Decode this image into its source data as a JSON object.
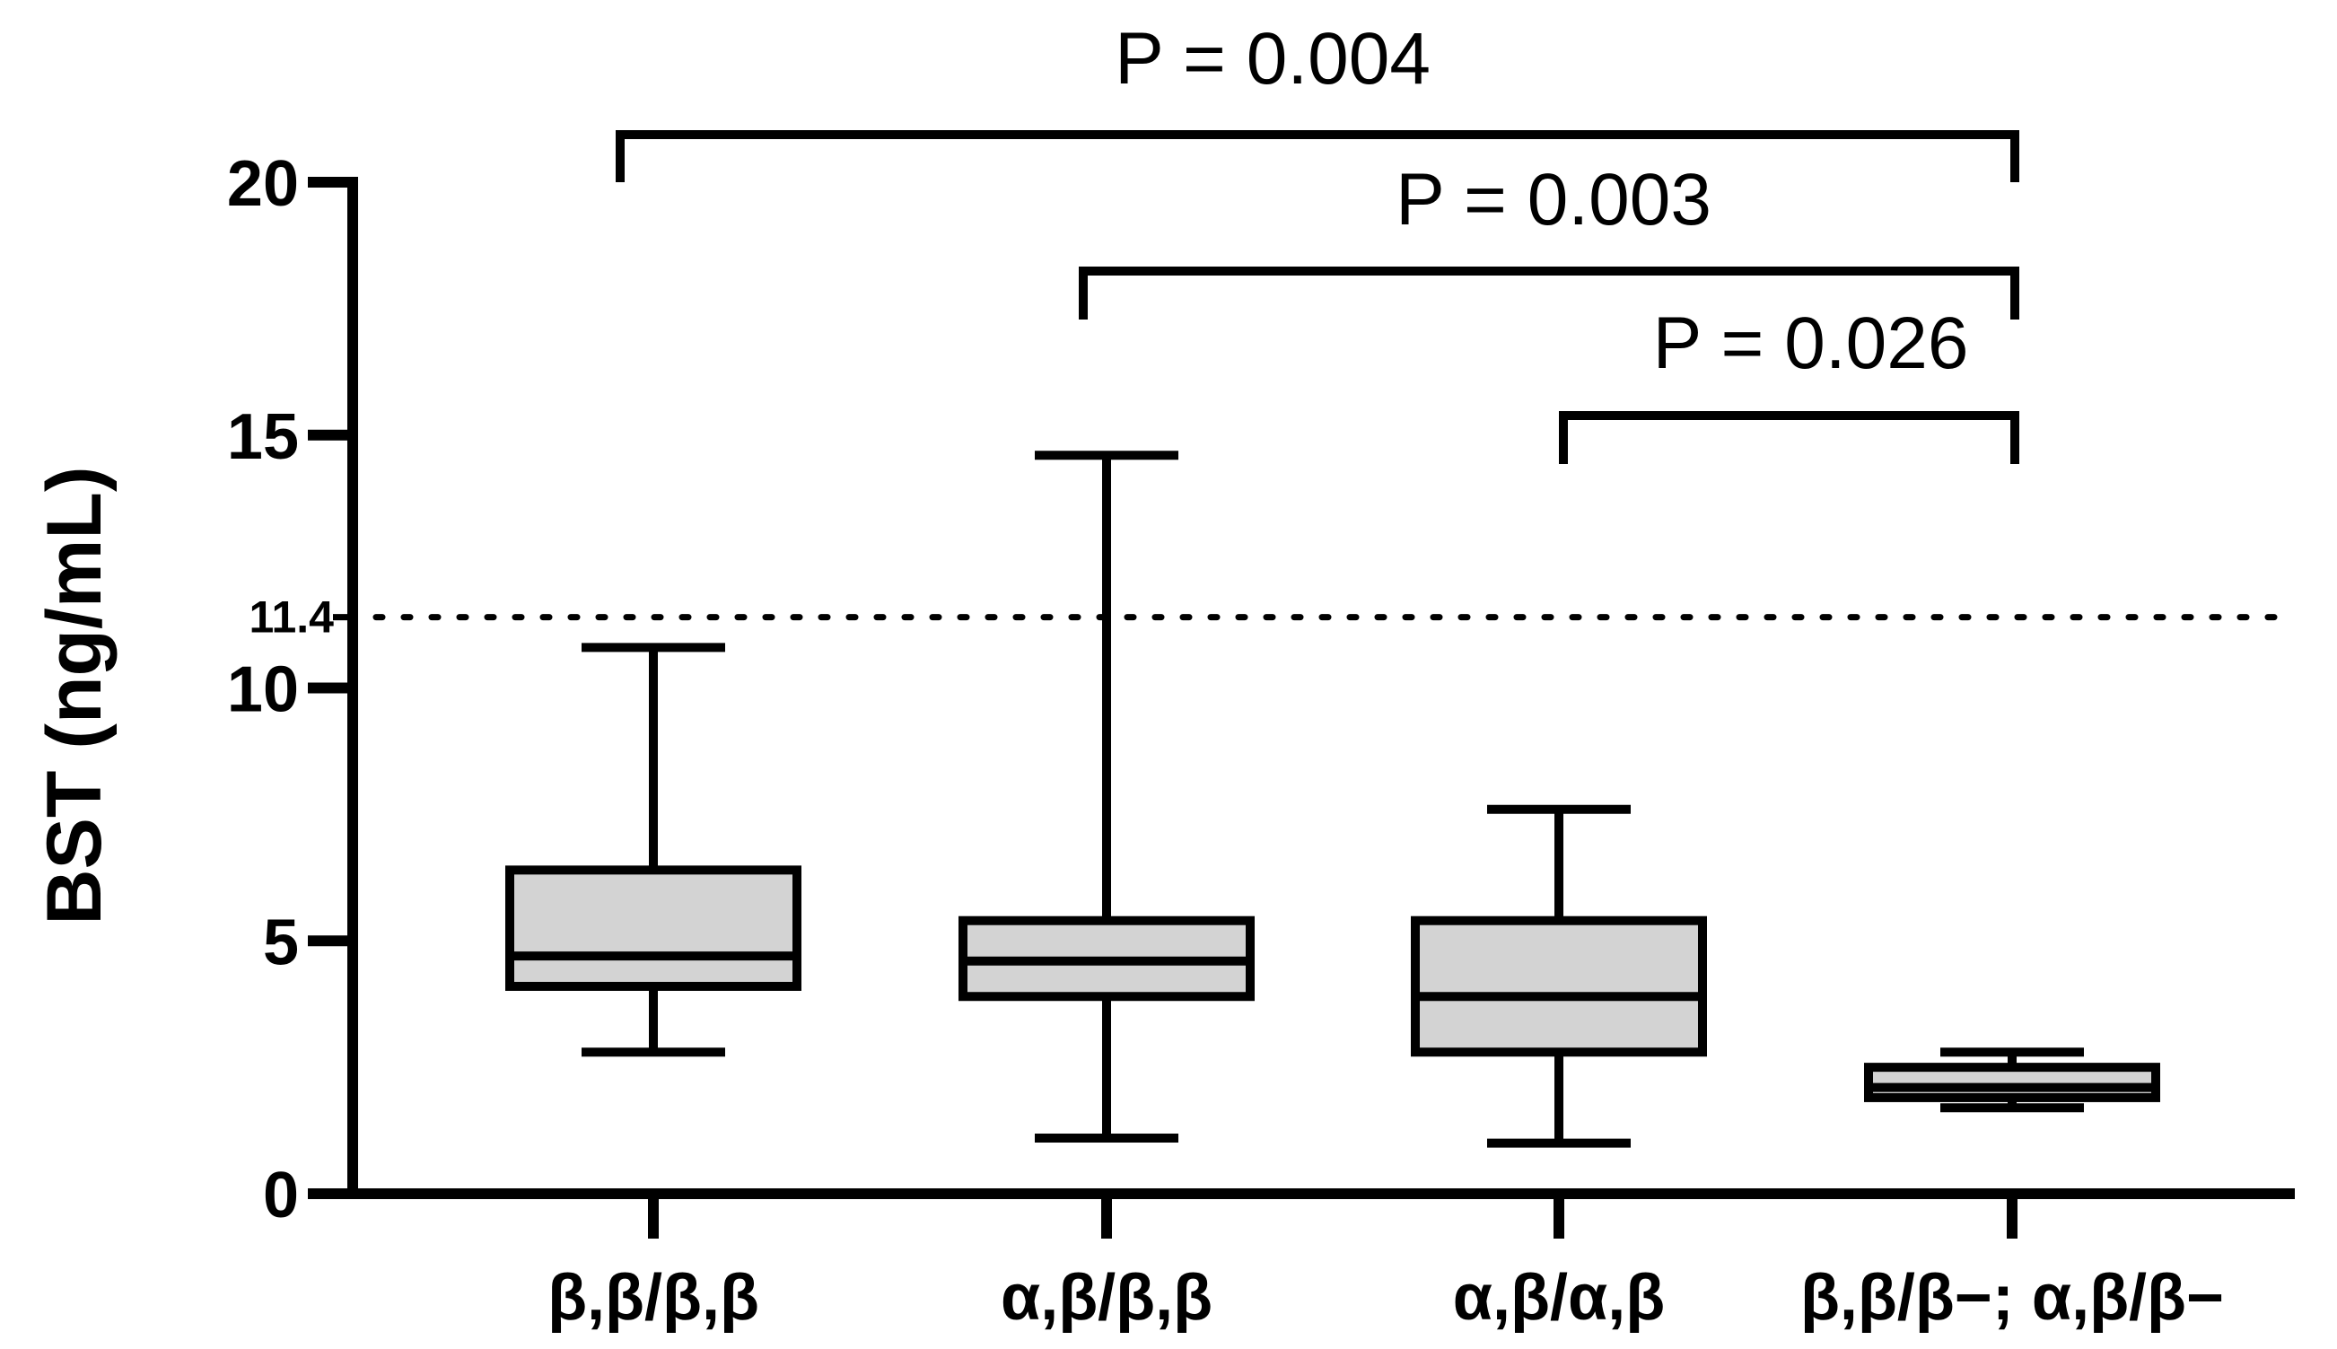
{
  "chart_data": {
    "type": "box",
    "ylabel": "BST (ng/mL)",
    "ylim": [
      0,
      20
    ],
    "yticks": [
      0,
      5,
      10,
      15,
      20
    ],
    "reference_line": {
      "value": 11.4,
      "label": "11.4",
      "style": "dotted"
    },
    "categories": [
      "β,β/β,β",
      "α,β/β,β",
      "α,β/α,β",
      "β,β/β−; α,β/β−"
    ],
    "boxes": [
      {
        "min": 2.8,
        "q1": 4.1,
        "median": 4.7,
        "q3": 6.4,
        "max": 10.8
      },
      {
        "min": 1.1,
        "q1": 3.9,
        "median": 4.6,
        "q3": 5.4,
        "max": 14.6
      },
      {
        "min": 1.0,
        "q1": 2.8,
        "median": 3.9,
        "q3": 5.4,
        "max": 7.6
      },
      {
        "min": 1.7,
        "q1": 1.9,
        "median": 2.1,
        "q3": 2.5,
        "max": 2.8
      }
    ],
    "box_fill": "#d3d3d3",
    "line_color": "#000000",
    "comparisons": [
      {
        "from": 0,
        "to": 3,
        "label": "P = 0.004"
      },
      {
        "from": 1,
        "to": 3,
        "label": "P = 0.003"
      },
      {
        "from": 2,
        "to": 3,
        "label": "P = 0.026"
      }
    ]
  }
}
